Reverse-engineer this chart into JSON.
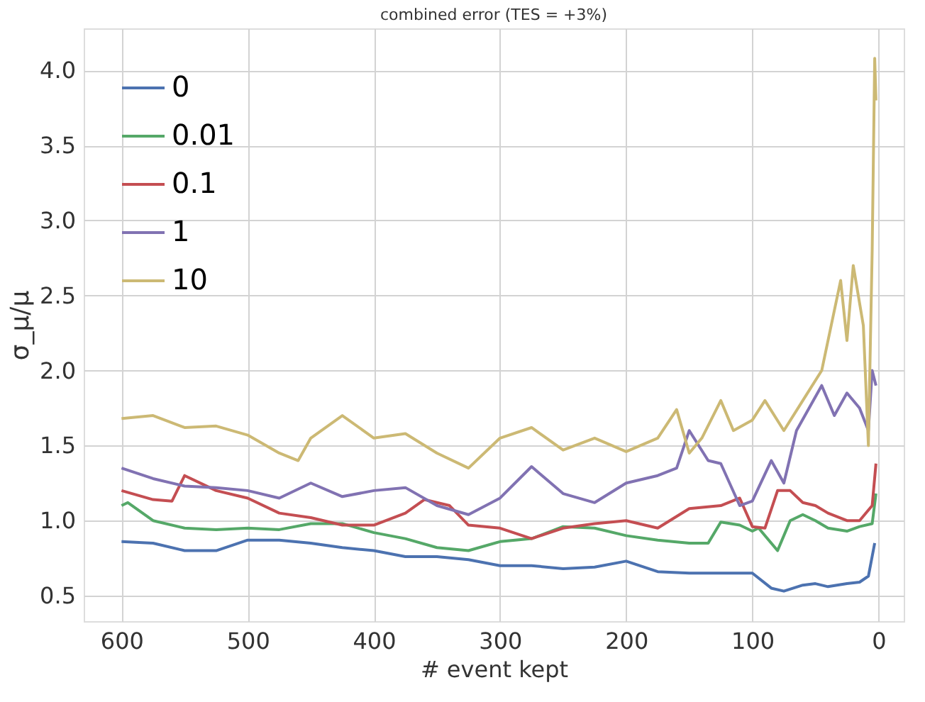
{
  "chart_data": {
    "type": "line",
    "title": "combined error (TES = +3%)",
    "xlabel": "# event kept",
    "ylabel": "σ_μ/μ",
    "xlim": [
      630,
      -20
    ],
    "xticks": [
      600,
      500,
      400,
      300,
      200,
      100,
      0
    ],
    "ylim": [
      0.33,
      4.28
    ],
    "yticks": [
      0.5,
      {
        "value": 1,
        "label": "1.0"
      },
      1.5,
      {
        "value": 2,
        "label": "2.0"
      },
      2.5,
      {
        "value": 3,
        "label": "3.0"
      },
      3.5,
      {
        "value": 4,
        "label": "4.0"
      }
    ],
    "grid": true,
    "legend": "top left",
    "marker": "none",
    "line_style": "solid",
    "series": [
      {
        "name": "0",
        "color": "#4c72b0",
        "x": [
          600,
          575,
          550,
          525,
          500,
          475,
          450,
          425,
          400,
          375,
          350,
          325,
          300,
          275,
          250,
          225,
          200,
          175,
          150,
          125,
          100,
          85,
          75,
          60,
          50,
          40,
          25,
          15,
          8,
          3
        ],
        "values": [
          0.86,
          0.85,
          0.8,
          0.8,
          0.87,
          0.87,
          0.85,
          0.82,
          0.8,
          0.76,
          0.76,
          0.74,
          0.7,
          0.7,
          0.68,
          0.69,
          0.73,
          0.66,
          0.65,
          0.65,
          0.65,
          0.55,
          0.53,
          0.57,
          0.58,
          0.56,
          0.58,
          0.59,
          0.63,
          0.85
        ]
      },
      {
        "name": "0.01",
        "color": "#55a868",
        "x": [
          600,
          595,
          575,
          550,
          525,
          500,
          475,
          450,
          425,
          400,
          375,
          350,
          325,
          300,
          275,
          250,
          225,
          200,
          175,
          150,
          135,
          125,
          110,
          100,
          95,
          80,
          70,
          60,
          50,
          40,
          25,
          15,
          5,
          2
        ],
        "values": [
          1.1,
          1.12,
          1.0,
          0.95,
          0.94,
          0.95,
          0.94,
          0.98,
          0.98,
          0.92,
          0.88,
          0.82,
          0.8,
          0.86,
          0.88,
          0.96,
          0.95,
          0.9,
          0.87,
          0.85,
          0.85,
          0.99,
          0.97,
          0.93,
          0.95,
          0.8,
          1.0,
          1.04,
          1.0,
          0.95,
          0.93,
          0.96,
          0.98,
          1.18
        ]
      },
      {
        "name": "0.1",
        "color": "#c44e52",
        "x": [
          600,
          575,
          560,
          550,
          525,
          500,
          475,
          450,
          425,
          400,
          375,
          360,
          340,
          325,
          300,
          275,
          250,
          225,
          200,
          175,
          150,
          125,
          110,
          100,
          90,
          80,
          70,
          60,
          50,
          40,
          25,
          15,
          5,
          2
        ],
        "values": [
          1.2,
          1.14,
          1.13,
          1.3,
          1.2,
          1.15,
          1.05,
          1.02,
          0.97,
          0.97,
          1.05,
          1.14,
          1.1,
          0.97,
          0.95,
          0.88,
          0.95,
          0.98,
          1.0,
          0.95,
          1.08,
          1.1,
          1.15,
          0.96,
          0.95,
          1.2,
          1.2,
          1.12,
          1.1,
          1.05,
          1.0,
          1.0,
          1.1,
          1.38
        ]
      },
      {
        "name": "1",
        "color": "#8172b2",
        "x": [
          600,
          575,
          550,
          525,
          500,
          475,
          450,
          425,
          400,
          375,
          350,
          325,
          300,
          275,
          250,
          225,
          200,
          175,
          160,
          150,
          135,
          125,
          110,
          100,
          85,
          75,
          65,
          55,
          45,
          35,
          25,
          15,
          8,
          5,
          2
        ],
        "values": [
          1.35,
          1.28,
          1.23,
          1.22,
          1.2,
          1.15,
          1.25,
          1.16,
          1.2,
          1.22,
          1.1,
          1.04,
          1.15,
          1.36,
          1.18,
          1.12,
          1.25,
          1.3,
          1.35,
          1.6,
          1.4,
          1.38,
          1.1,
          1.13,
          1.4,
          1.25,
          1.6,
          1.75,
          1.9,
          1.7,
          1.85,
          1.75,
          1.6,
          2.0,
          1.9
        ]
      },
      {
        "name": "10",
        "color": "#ccb974",
        "x": [
          600,
          575,
          550,
          525,
          500,
          475,
          460,
          450,
          425,
          400,
          375,
          350,
          325,
          300,
          275,
          250,
          225,
          200,
          175,
          160,
          150,
          140,
          125,
          115,
          100,
          90,
          75,
          60,
          45,
          30,
          25,
          20,
          12,
          8,
          5,
          3,
          2
        ],
        "values": [
          1.68,
          1.7,
          1.62,
          1.63,
          1.57,
          1.45,
          1.4,
          1.55,
          1.7,
          1.55,
          1.58,
          1.45,
          1.35,
          1.55,
          1.62,
          1.47,
          1.55,
          1.46,
          1.55,
          1.74,
          1.45,
          1.55,
          1.8,
          1.6,
          1.67,
          1.8,
          1.6,
          1.8,
          2.0,
          2.6,
          2.2,
          2.7,
          2.3,
          1.5,
          2.8,
          4.08,
          3.8
        ]
      }
    ]
  }
}
